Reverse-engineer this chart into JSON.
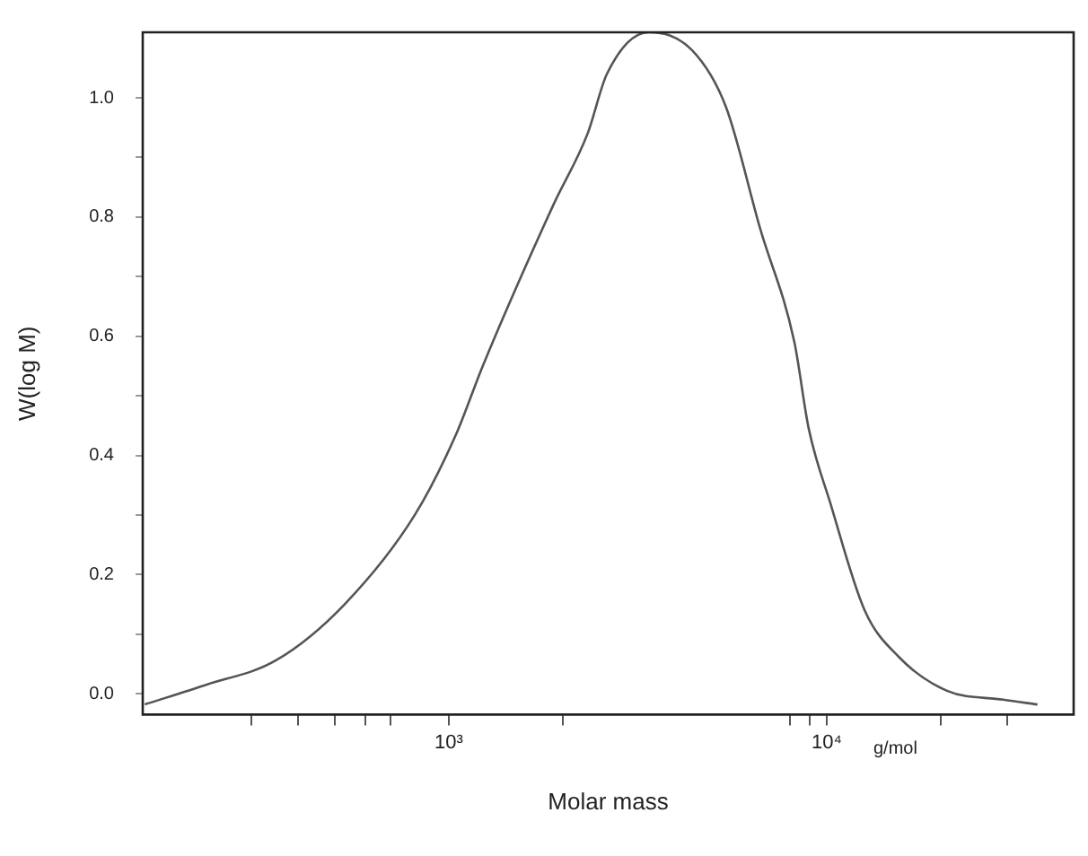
{
  "chart_data": {
    "type": "line",
    "xlabel": "Molar mass",
    "ylabel": "W(log M)",
    "log": "x",
    "grid": false,
    "legend": false,
    "marker": "none",
    "line_style": "solid",
    "xlim": [
      155,
      45000
    ],
    "ylim": [
      -0.035,
      1.11
    ],
    "xticks": [
      {
        "value": 300,
        "label": null
      },
      {
        "value": 400,
        "label": null
      },
      {
        "value": 500,
        "label": null
      },
      {
        "value": 600,
        "label": null
      },
      {
        "value": 700,
        "label": null
      },
      {
        "value": 1000,
        "label": "10³"
      },
      {
        "value": 2000,
        "label": null
      },
      {
        "value": 8000,
        "label": null
      },
      {
        "value": 9000,
        "label": null
      },
      {
        "value": 10000,
        "label": "10⁴"
      },
      {
        "value": 20000,
        "label": null
      },
      {
        "value": 30000,
        "label": null
      }
    ],
    "yticks": [
      {
        "value": 0,
        "label": "0.0"
      },
      {
        "value": 0.1,
        "label": null
      },
      {
        "value": 0.2,
        "label": "0.2"
      },
      {
        "value": 0.3,
        "label": null
      },
      {
        "value": 0.4,
        "label": "0.4"
      },
      {
        "value": 0.5,
        "label": null
      },
      {
        "value": 0.6,
        "label": "0.6"
      },
      {
        "value": 0.7,
        "label": null
      },
      {
        "value": 0.8,
        "label": "0.8"
      },
      {
        "value": 0.9,
        "label": null
      },
      {
        "value": 1.0,
        "label": "1.0"
      }
    ],
    "annotations": [
      "g/mol"
    ],
    "series": [
      {
        "color": "#555555",
        "x": [
          157,
          228,
          349,
          530,
          813,
          1045,
          1230,
          1890,
          2330,
          2620,
          3380,
          4400,
          5410,
          6670,
          8210,
          8960,
          10220,
          12600,
          15500,
          20800,
          29300,
          36100
        ],
        "values": [
          -0.018,
          0.015,
          0.056,
          0.15,
          0.3,
          0.435,
          0.55,
          0.82,
          0.94,
          1.04,
          1.11,
          1.08,
          0.985,
          0.78,
          0.59,
          0.445,
          0.32,
          0.14,
          0.062,
          0.005,
          -0.01,
          -0.018
        ]
      }
    ]
  }
}
